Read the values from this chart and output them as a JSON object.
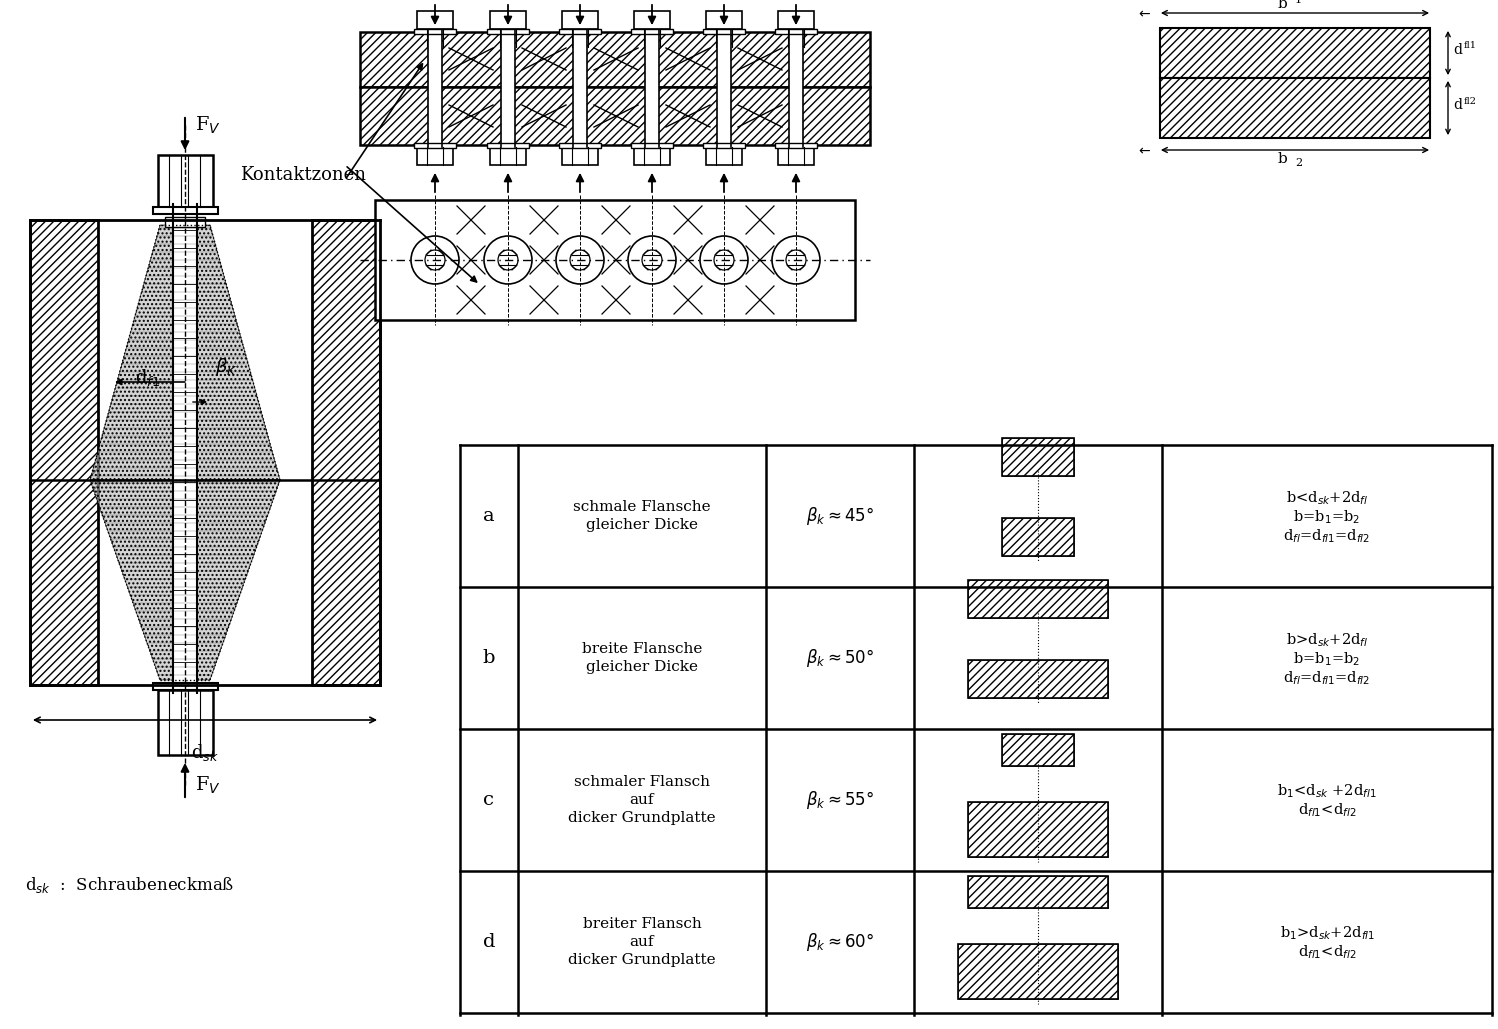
{
  "bg": "#ffffff",
  "lc": "#000000",
  "table_rows": [
    "a",
    "b",
    "c",
    "d"
  ],
  "table_desc": [
    [
      "schmale Flansche",
      "gleicher Dicke"
    ],
    [
      "breite Flansche",
      "gleicher Dicke"
    ],
    [
      "schmaler Flansch",
      "auf",
      "dicker Grundplatte"
    ],
    [
      "breiter Flansch",
      "auf",
      "dicker Grundplatte"
    ]
  ],
  "table_angles": [
    "$\\beta_k\\approx45°$",
    "$\\beta_k\\approx50°$",
    "$\\beta_k\\approx55°$",
    "$\\beta_k\\approx60°$"
  ],
  "right_texts": [
    [
      "b<d$_{sk}$+2d$_{fl}$",
      "b=b$_1$=b$_2$",
      "d$_{fl}$=d$_{fl1}$=d$_{fl2}$"
    ],
    [
      "b>d$_{sk}$+2d$_{fl}$",
      "b=b$_1$=b$_2$",
      "d$_{fl}$=d$_{fl1}$=d$_{fl2}$"
    ],
    [
      "b$_1$<d$_{sk}$ +2d$_{fl1}$",
      "d$_{fl1}$<d$_{fl2}$"
    ],
    [
      "b$_1$>d$_{sk}$+2d$_{fl1}$",
      "d$_{fl1}$<d$_{fl2}$"
    ]
  ],
  "kontaktzonen": "Kontaktzonen",
  "dsk_note": "d$_{sk}$  :  Schraubeneckmaß"
}
